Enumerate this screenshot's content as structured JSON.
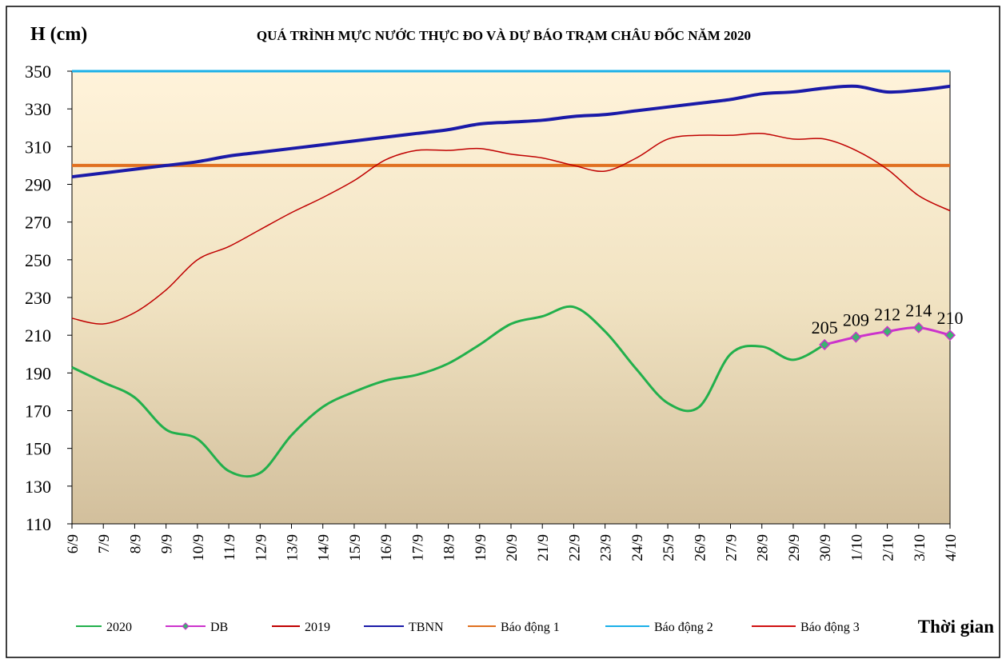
{
  "chart_data": {
    "type": "line",
    "title": "QUÁ TRÌNH MỰC NƯỚC THỰC ĐO VÀ DỰ BÁO TRẠM CHÂU ĐỐC NĂM 2020",
    "y_label": "H (cm)",
    "x_label": "Thời gian",
    "categories": [
      "6/9",
      "7/9",
      "8/9",
      "9/9",
      "10/9",
      "11/9",
      "12/9",
      "13/9",
      "14/9",
      "15/9",
      "16/9",
      "17/9",
      "18/9",
      "19/9",
      "20/9",
      "21/9",
      "22/9",
      "23/9",
      "24/9",
      "25/9",
      "26/9",
      "27/9",
      "28/9",
      "29/9",
      "30/9",
      "1/10",
      "2/10",
      "3/10",
      "4/10"
    ],
    "ylim": [
      110,
      350
    ],
    "yticks": [
      110,
      130,
      150,
      170,
      190,
      210,
      230,
      250,
      270,
      290,
      310,
      330,
      350
    ],
    "grid": false,
    "legend": "bottom",
    "series": [
      {
        "name": "2020",
        "color": "#22b04c",
        "width": 3,
        "values": [
          193,
          185,
          177,
          160,
          155,
          138,
          137,
          157,
          172,
          180,
          186,
          189,
          195,
          205,
          216,
          220,
          225,
          212,
          192,
          174,
          172,
          200,
          204,
          197,
          205,
          null,
          null,
          null,
          null
        ]
      },
      {
        "name": "DB",
        "color": "#cc33cc",
        "width": 3,
        "marker": "diamond",
        "marker_color": "#3cb371",
        "values": [
          null,
          null,
          null,
          null,
          null,
          null,
          null,
          null,
          null,
          null,
          null,
          null,
          null,
          null,
          null,
          null,
          null,
          null,
          null,
          null,
          null,
          null,
          null,
          null,
          205,
          209,
          212,
          214,
          210
        ]
      },
      {
        "name": "2019",
        "color": "#c00000",
        "width": 1.5,
        "values": [
          219,
          216,
          222,
          234,
          250,
          257,
          266,
          275,
          283,
          292,
          303,
          308,
          308,
          309,
          306,
          304,
          300,
          297,
          304,
          314,
          316,
          316,
          317,
          314,
          314,
          308,
          298,
          284,
          276
        ]
      },
      {
        "name": "TBNN",
        "color": "#1a1aa8",
        "width": 4,
        "values": [
          294,
          296,
          298,
          300,
          302,
          305,
          307,
          309,
          311,
          313,
          315,
          317,
          319,
          322,
          323,
          324,
          326,
          327,
          329,
          331,
          333,
          335,
          338,
          339,
          341,
          342,
          339,
          340,
          342
        ]
      },
      {
        "name": "Báo động 1",
        "color": "#e07020",
        "width": 4,
        "values": [
          300,
          300,
          300,
          300,
          300,
          300,
          300,
          300,
          300,
          300,
          300,
          300,
          300,
          300,
          300,
          300,
          300,
          300,
          300,
          300,
          300,
          300,
          300,
          300,
          300,
          300,
          300,
          300,
          300
        ]
      },
      {
        "name": "Báo động 2",
        "color": "#1ab0e8",
        "width": 3,
        "values": [
          350,
          350,
          350,
          350,
          350,
          350,
          350,
          350,
          350,
          350,
          350,
          350,
          350,
          350,
          350,
          350,
          350,
          350,
          350,
          350,
          350,
          350,
          350,
          350,
          350,
          350,
          350,
          350,
          350
        ]
      },
      {
        "name": "Báo động 3",
        "color": "#d01010",
        "width": 1.5,
        "values": [
          null,
          null,
          null,
          null,
          null,
          null,
          null,
          null,
          null,
          null,
          null,
          null,
          null,
          null,
          null,
          null,
          null,
          null,
          null,
          null,
          null,
          null,
          null,
          null,
          null,
          null,
          null,
          null,
          null
        ]
      }
    ],
    "data_labels_series": 1
  }
}
